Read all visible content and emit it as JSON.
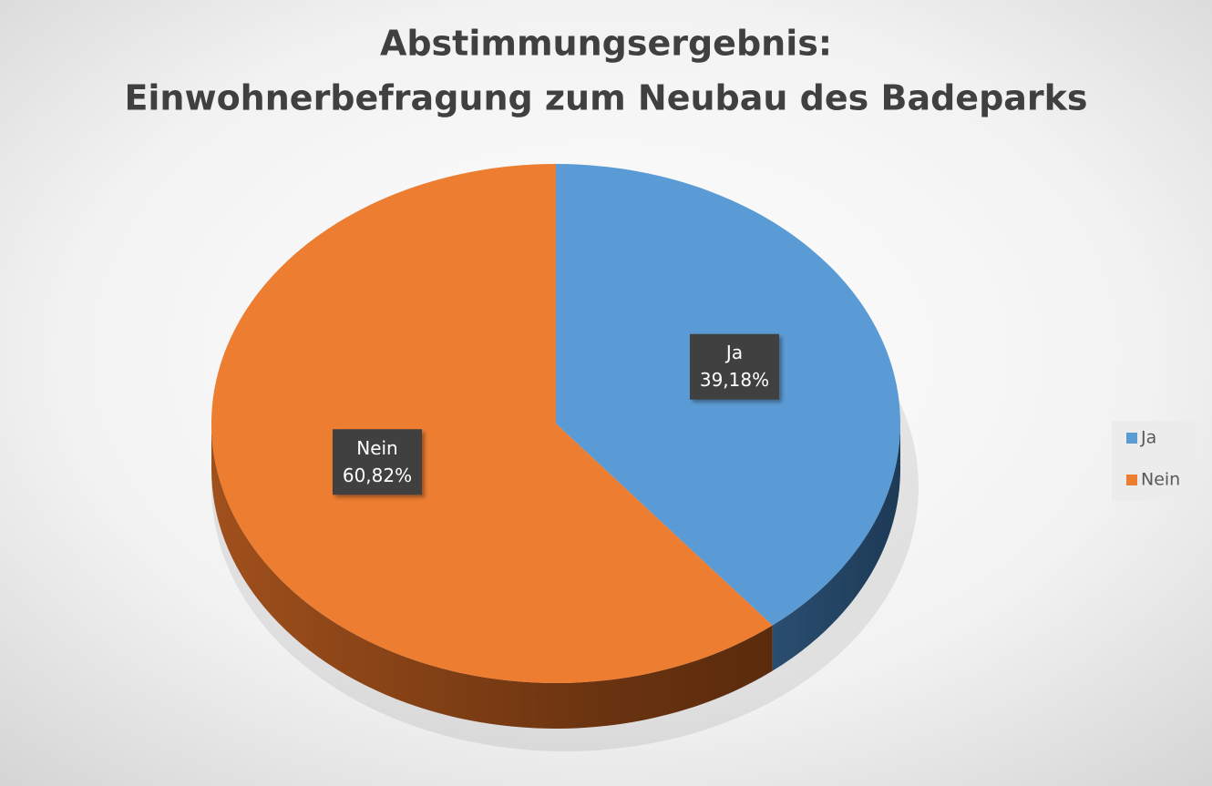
{
  "chart_data": {
    "type": "pie",
    "title": [
      "Abstimmungsergebnis:",
      "Einwohnerbefragung zum Neubau des Badeparks"
    ],
    "categories": [
      "Ja",
      "Nein"
    ],
    "values": [
      39.18,
      60.82
    ],
    "value_labels": [
      "39,18%",
      "60,82%"
    ],
    "colors": [
      "#5b9bd5",
      "#ed7d31"
    ],
    "legend": "right"
  }
}
